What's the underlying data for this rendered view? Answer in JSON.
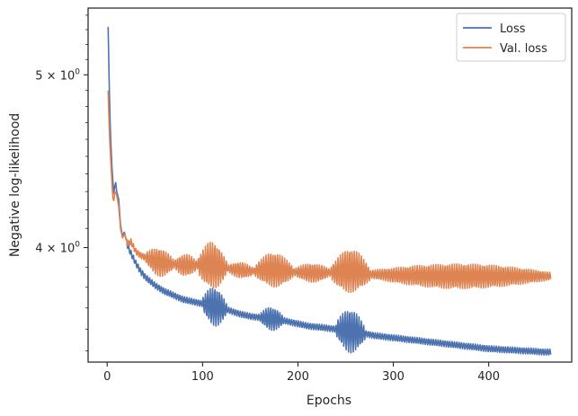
{
  "chart_data": {
    "type": "line",
    "xlabel": "Epochs",
    "ylabel": "Negative log-likelihood",
    "yscale": "log",
    "xlim": [
      -20,
      487
    ],
    "ylim": [
      3.45,
      5.45
    ],
    "xticks": [
      {
        "value": 0,
        "label": "0"
      },
      {
        "value": 100,
        "label": "100"
      },
      {
        "value": 200,
        "label": "200"
      },
      {
        "value": 300,
        "label": "300"
      },
      {
        "value": 400,
        "label": "400"
      }
    ],
    "yticks": [
      {
        "value": 4.0,
        "base": "4",
        "label": "4 × 10⁰"
      },
      {
        "value": 5.0,
        "base": "5",
        "label": "5 × 10⁰"
      }
    ],
    "grid": false,
    "legend": "upper-right",
    "series": [
      {
        "name": "Loss",
        "color": "#4c72b0",
        "oscillations": [
          [
            100,
            125,
            0.025
          ],
          [
            160,
            185,
            0.015
          ],
          [
            240,
            270,
            0.028
          ]
        ],
        "points": [
          [
            1,
            5.32
          ],
          [
            2,
            4.98
          ],
          [
            3,
            4.72
          ],
          [
            4,
            4.56
          ],
          [
            5,
            4.44
          ],
          [
            6,
            4.36
          ],
          [
            7,
            4.29
          ],
          [
            8,
            4.33
          ],
          [
            9,
            4.35
          ],
          [
            10,
            4.3
          ],
          [
            12,
            4.26
          ],
          [
            14,
            4.12
          ],
          [
            16,
            4.06
          ],
          [
            18,
            4.08
          ],
          [
            20,
            4.04
          ],
          [
            22,
            4.0
          ],
          [
            25,
            3.97
          ],
          [
            28,
            3.94
          ],
          [
            30,
            3.92
          ],
          [
            35,
            3.88
          ],
          [
            40,
            3.85
          ],
          [
            45,
            3.83
          ],
          [
            50,
            3.81
          ],
          [
            60,
            3.78
          ],
          [
            70,
            3.76
          ],
          [
            80,
            3.74
          ],
          [
            90,
            3.73
          ],
          [
            100,
            3.72
          ],
          [
            110,
            3.71
          ],
          [
            120,
            3.7
          ],
          [
            130,
            3.685
          ],
          [
            140,
            3.67
          ],
          [
            150,
            3.66
          ],
          [
            160,
            3.655
          ],
          [
            170,
            3.65
          ],
          [
            180,
            3.645
          ],
          [
            190,
            3.635
          ],
          [
            200,
            3.625
          ],
          [
            210,
            3.615
          ],
          [
            220,
            3.61
          ],
          [
            230,
            3.605
          ],
          [
            240,
            3.6
          ],
          [
            250,
            3.595
          ],
          [
            260,
            3.59
          ],
          [
            270,
            3.58
          ],
          [
            280,
            3.57
          ],
          [
            300,
            3.56
          ],
          [
            320,
            3.55
          ],
          [
            340,
            3.54
          ],
          [
            360,
            3.53
          ],
          [
            380,
            3.52
          ],
          [
            400,
            3.51
          ],
          [
            420,
            3.505
          ],
          [
            440,
            3.5
          ],
          [
            460,
            3.495
          ],
          [
            465,
            3.495
          ]
        ]
      },
      {
        "name": "Val. loss",
        "color": "#dd8452",
        "oscillations": [
          [
            40,
            70,
            0.018
          ],
          [
            70,
            95,
            0.014
          ],
          [
            95,
            125,
            0.03
          ],
          [
            125,
            155,
            0.01
          ],
          [
            155,
            195,
            0.022
          ],
          [
            195,
            235,
            0.012
          ],
          [
            235,
            275,
            0.028
          ],
          [
            275,
            465,
            0.016
          ]
        ],
        "points": [
          [
            1,
            4.9
          ],
          [
            2,
            4.7
          ],
          [
            3,
            4.55
          ],
          [
            4,
            4.45
          ],
          [
            5,
            4.35
          ],
          [
            6,
            4.26
          ],
          [
            7,
            4.25
          ],
          [
            8,
            4.3
          ],
          [
            10,
            4.28
          ],
          [
            12,
            4.22
          ],
          [
            14,
            4.1
          ],
          [
            16,
            4.05
          ],
          [
            18,
            4.07
          ],
          [
            20,
            4.04
          ],
          [
            22,
            4.02
          ],
          [
            25,
            4.03
          ],
          [
            28,
            4.0
          ],
          [
            30,
            3.98
          ],
          [
            35,
            3.96
          ],
          [
            40,
            3.95
          ],
          [
            50,
            3.93
          ],
          [
            60,
            3.92
          ],
          [
            80,
            3.91
          ],
          [
            100,
            3.91
          ],
          [
            110,
            3.915
          ],
          [
            120,
            3.9
          ],
          [
            130,
            3.89
          ],
          [
            140,
            3.885
          ],
          [
            150,
            3.88
          ],
          [
            170,
            3.89
          ],
          [
            180,
            3.885
          ],
          [
            200,
            3.875
          ],
          [
            220,
            3.87
          ],
          [
            240,
            3.875
          ],
          [
            255,
            3.885
          ],
          [
            265,
            3.88
          ],
          [
            275,
            3.865
          ],
          [
            300,
            3.86
          ],
          [
            350,
            3.855
          ],
          [
            400,
            3.855
          ],
          [
            440,
            3.855
          ],
          [
            465,
            3.855
          ]
        ]
      }
    ]
  }
}
